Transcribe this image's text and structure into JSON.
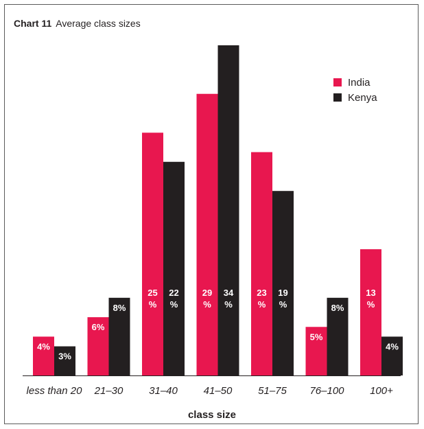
{
  "chart_title": {
    "number": "Chart 11",
    "text": "Average class sizes"
  },
  "chart_data": {
    "type": "bar",
    "title": "Average class sizes",
    "xlabel": "class size",
    "ylabel": "",
    "categories": [
      "less than 20",
      "21–30",
      "31–40",
      "41–50",
      "51–75",
      "76–100",
      "100+"
    ],
    "series": [
      {
        "name": "India",
        "color": "#e8174f",
        "values": [
          4,
          6,
          25,
          29,
          23,
          5,
          13
        ],
        "labels": [
          [
            "4%"
          ],
          [
            "6%"
          ],
          [
            "25",
            "%"
          ],
          [
            "29",
            "%"
          ],
          [
            "23",
            "%"
          ],
          [
            "5%"
          ],
          [
            "13",
            "%"
          ]
        ]
      },
      {
        "name": "Kenya",
        "color": "#231f20",
        "values": [
          3,
          8,
          22,
          34,
          19,
          8,
          4
        ],
        "labels": [
          [
            "3%"
          ],
          [
            "8%"
          ],
          [
            "22",
            "%"
          ],
          [
            "34",
            "%"
          ],
          [
            "19",
            "%"
          ],
          [
            "8%"
          ],
          [
            "4%"
          ]
        ]
      }
    ],
    "ylim": [
      0,
      35
    ],
    "grid": false,
    "legend_position": "top-right"
  }
}
